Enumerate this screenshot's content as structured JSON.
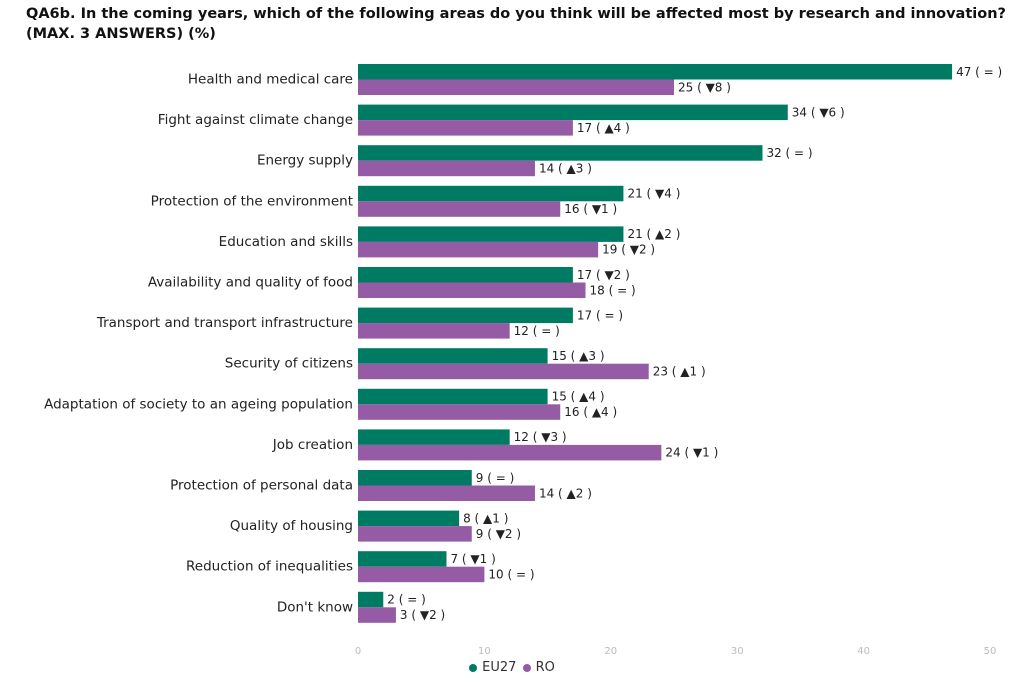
{
  "title": "QA6b. In the coming years, which of the following areas do you think will be affected most by research and innovation? (MAX. 3 ANSWERS) (%)",
  "chart_data": {
    "type": "bar",
    "orientation": "horizontal",
    "categories": [
      "Health and medical care",
      "Fight against climate change",
      "Energy supply",
      "Protection of the environment",
      "Education and skills",
      "Availability and quality of food",
      "Transport and transport infrastructure",
      "Security of citizens",
      "Adaptation of society to an ageing population",
      "Job creation",
      "Protection of personal data",
      "Quality of housing",
      "Reduction of inequalities",
      "Don't know"
    ],
    "series": [
      {
        "name": "EU27",
        "color": "#007b63",
        "values": [
          47,
          34,
          32,
          21,
          21,
          17,
          17,
          15,
          15,
          12,
          9,
          8,
          7,
          2
        ],
        "changes": [
          "=",
          "▼6",
          "=",
          "▼4",
          "▲2",
          "▼2",
          "=",
          "▲3",
          "▲4",
          "▼3",
          "=",
          "▲1",
          "▼1",
          "="
        ]
      },
      {
        "name": "RO",
        "color": "#955ba5",
        "values": [
          25,
          17,
          14,
          16,
          19,
          18,
          12,
          23,
          16,
          24,
          14,
          9,
          10,
          3
        ],
        "changes": [
          "▼8",
          "▲4",
          "▲3",
          "▼1",
          "▼2",
          "=",
          "=",
          "▲1",
          "▲4",
          "▼1",
          "▲2",
          "▼2",
          "=",
          "▼2"
        ]
      }
    ],
    "xlim": [
      0,
      50
    ],
    "xticks": [
      0,
      10,
      20,
      30,
      40,
      50
    ],
    "grid": false,
    "legend_position": "bottom-center"
  }
}
